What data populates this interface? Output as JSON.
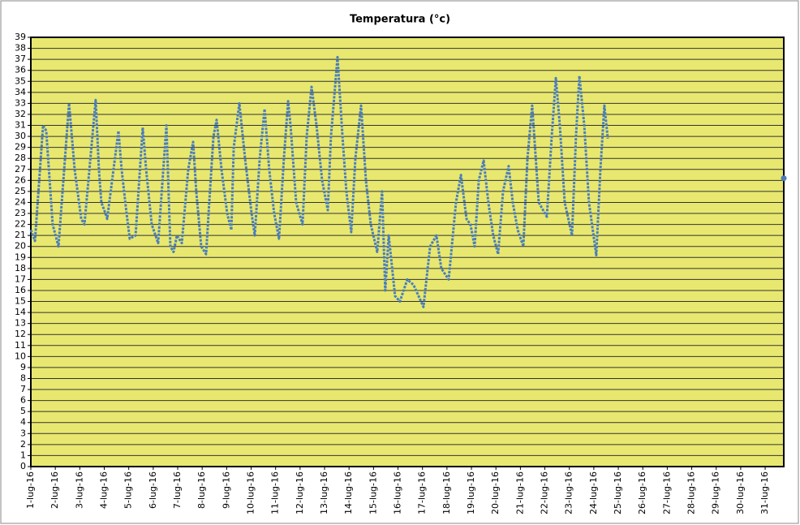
{
  "chart_data": {
    "type": "line",
    "title": "Temperatura (°c)",
    "color": "#4a7ebb",
    "grid": true,
    "plot_background": "#e8e870",
    "x": [
      0,
      0.17,
      0.5,
      0.63,
      0.89,
      1.13,
      1.56,
      1.79,
      2.06,
      2.19,
      2.65,
      2.78,
      2.88,
      3.05,
      3.12,
      3.58,
      3.71,
      3.91,
      4.04,
      4.28,
      4.57,
      4.71,
      4.94,
      5.2,
      5.54,
      5.7,
      5.83,
      5.97,
      6.17,
      6.43,
      6.63,
      6.76,
      6.96,
      7.16,
      7.29,
      7.46,
      7.59,
      7.79,
      8.02,
      8.19,
      8.29,
      8.52,
      8.75,
      9.02,
      9.15,
      9.35,
      9.55,
      9.74,
      9.94,
      10.14,
      10.34,
      10.51,
      10.61,
      10.84,
      11.1,
      11.27,
      11.47,
      11.67,
      11.9,
      12.13,
      12.26,
      12.53,
      12.73,
      12.89,
      13.09,
      13.26,
      13.49,
      13.69,
      13.89,
      14.15,
      14.35,
      14.48,
      14.62,
      14.88,
      15.08,
      15.38,
      15.64,
      16.04,
      16.31,
      16.57,
      16.77,
      17.07,
      17.37,
      17.57,
      17.8,
      17.96,
      18.13,
      18.3,
      18.5,
      18.69,
      18.89,
      19.09,
      19.29,
      19.52,
      19.69,
      19.89,
      20.12,
      20.29,
      20.48,
      20.75,
      21.08,
      21.28,
      21.45,
      21.61,
      21.81,
      22.11,
      22.27,
      22.41,
      22.61,
      22.8,
      23.1,
      23.27,
      23.43,
      23.57,
      30,
      30.76
    ],
    "values": [
      21.5,
      20.5,
      31,
      30.5,
      22,
      20,
      33,
      27,
      22.5,
      22,
      33.3,
      27,
      24,
      23,
      22.5,
      30.5,
      27,
      23,
      20.7,
      21,
      30.8,
      27,
      22,
      20.3,
      31,
      20,
      19.5,
      21,
      20.3,
      27,
      29.5,
      25,
      20,
      19.3,
      24,
      30,
      31.5,
      27,
      23,
      21.5,
      29,
      33,
      28,
      23,
      21,
      28,
      32.5,
      27,
      23,
      20.7,
      28,
      33.2,
      31,
      24,
      22,
      30,
      34.5,
      31,
      26,
      23.3,
      30,
      37.2,
      30,
      25,
      21.3,
      28,
      32.8,
      26,
      22,
      19.5,
      25,
      16,
      21,
      15.5,
      15,
      17,
      16.5,
      14.5,
      20,
      21,
      18,
      17,
      24,
      26.5,
      22.5,
      22,
      20,
      26,
      27.8,
      24,
      21,
      19.3,
      25,
      27.3,
      24,
      21.5,
      20,
      28,
      32.8,
      24,
      22.7,
      30,
      35.3,
      31,
      24,
      21,
      30,
      35.5,
      31,
      24,
      19.2,
      27,
      32.8,
      29.8,
      null,
      26.2
    ],
    "xlim": [
      0,
      30.76
    ],
    "ylim": [
      0,
      39
    ],
    "xticks": [
      {
        "value": 0,
        "label": "1-lug-16"
      },
      {
        "value": 1,
        "label": "2-lug-16"
      },
      {
        "value": 2,
        "label": "3-lug-16"
      },
      {
        "value": 3,
        "label": "4-lug-16"
      },
      {
        "value": 4,
        "label": "5-lug-16"
      },
      {
        "value": 5,
        "label": "6-lug-16"
      },
      {
        "value": 6,
        "label": "7-lug-16"
      },
      {
        "value": 7,
        "label": "8-lug-16"
      },
      {
        "value": 8,
        "label": "9-lug-16"
      },
      {
        "value": 9,
        "label": "10-lug-16"
      },
      {
        "value": 10,
        "label": "11-lug-16"
      },
      {
        "value": 11,
        "label": "12-lug-16"
      },
      {
        "value": 12,
        "label": "13-lug-16"
      },
      {
        "value": 13,
        "label": "14-lug-16"
      },
      {
        "value": 14,
        "label": "15-lug-16"
      },
      {
        "value": 15,
        "label": "16-lug-16"
      },
      {
        "value": 16,
        "label": "17-lug-16"
      },
      {
        "value": 17,
        "label": "18-lug-16"
      },
      {
        "value": 18,
        "label": "19-lug-16"
      },
      {
        "value": 19,
        "label": "20-lug-16"
      },
      {
        "value": 20,
        "label": "21-lug-16"
      },
      {
        "value": 21,
        "label": "22-lug-16"
      },
      {
        "value": 22,
        "label": "23-lug-16"
      },
      {
        "value": 23,
        "label": "24-lug-16"
      },
      {
        "value": 24,
        "label": "25-lug-16"
      },
      {
        "value": 25,
        "label": "26-lug-16"
      },
      {
        "value": 26,
        "label": "27-lug-16"
      },
      {
        "value": 27,
        "label": "28-lug-16"
      },
      {
        "value": 28,
        "label": "29-lug-16"
      },
      {
        "value": 29,
        "label": "30-lug-16"
      },
      {
        "value": 30,
        "label": "31-lug-16"
      }
    ],
    "yticks": [
      0,
      1,
      2,
      3,
      4,
      5,
      6,
      7,
      8,
      9,
      10,
      11,
      12,
      13,
      14,
      15,
      16,
      17,
      18,
      19,
      20,
      21,
      22,
      23,
      24,
      25,
      26,
      27,
      28,
      29,
      30,
      31,
      32,
      33,
      34,
      35,
      36,
      37,
      38,
      39
    ]
  }
}
